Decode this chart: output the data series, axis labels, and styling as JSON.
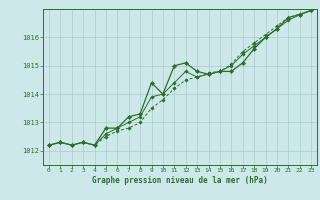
{
  "xlabel": "Graphe pression niveau de la mer (hPa)",
  "ylabel": "",
  "background_color": "#cce8e8",
  "grid_color": "#aacccc",
  "line_color": "#2d6e2d",
  "xlim": [
    -0.5,
    23.5
  ],
  "ylim": [
    1011.5,
    1017.0
  ],
  "xticks": [
    0,
    1,
    2,
    3,
    4,
    5,
    6,
    7,
    8,
    9,
    10,
    11,
    12,
    13,
    14,
    15,
    16,
    17,
    18,
    19,
    20,
    21,
    22,
    23
  ],
  "yticks": [
    1012,
    1013,
    1014,
    1015,
    1016
  ],
  "series": [
    [
      1012.2,
      1012.3,
      1012.2,
      1012.3,
      1012.2,
      1012.8,
      1012.8,
      1013.2,
      1013.3,
      1014.4,
      1014.0,
      1015.0,
      1015.1,
      1014.8,
      1014.7,
      1014.8,
      1014.8,
      1015.1,
      1015.6,
      1016.0,
      1016.3,
      1016.7,
      1016.8,
      1016.95
    ],
    [
      1012.2,
      1012.3,
      1012.2,
      1012.3,
      1012.2,
      1012.5,
      1012.7,
      1012.8,
      1013.0,
      1013.5,
      1013.8,
      1014.2,
      1014.5,
      1014.6,
      1014.75,
      1014.8,
      1015.05,
      1015.5,
      1015.8,
      1016.1,
      1016.4,
      1016.7,
      1016.82,
      1016.95
    ],
    [
      1012.2,
      1012.3,
      1012.2,
      1012.3,
      1012.2,
      1012.6,
      1012.8,
      1013.0,
      1013.2,
      1013.9,
      1014.0,
      1014.4,
      1014.8,
      1014.6,
      1014.7,
      1014.8,
      1015.0,
      1015.4,
      1015.7,
      1016.0,
      1016.3,
      1016.6,
      1016.8,
      1016.95
    ]
  ]
}
